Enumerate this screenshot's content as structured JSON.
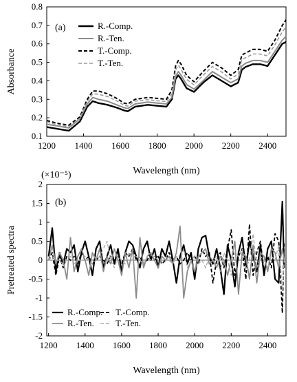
{
  "chart_data": [
    {
      "type": "line",
      "panel_label": "(a)",
      "xlabel": "Wavelength  (nm)",
      "ylabel": "Absorbance",
      "xlim": [
        1200,
        2500
      ],
      "ylim": [
        0.1,
        0.8
      ],
      "xticks": [
        1200,
        1400,
        1600,
        1800,
        2000,
        2200,
        2400
      ],
      "yticks": [
        "0.1",
        "0.2",
        "0.3",
        "0.4",
        "0.5",
        "0.6",
        "0.7",
        "0.8"
      ],
      "legend_position": "top-left",
      "legend": [
        {
          "name": "R.-Comp.",
          "color": "#000000",
          "dash": "solid",
          "width": 2.4
        },
        {
          "name": "R.-Ten.",
          "color": "#8c8c8c",
          "dash": "solid",
          "width": 2
        },
        {
          "name": "T.-Comp.",
          "color": "#000000",
          "dash": "dashed",
          "width": 2
        },
        {
          "name": "T.-Ten.",
          "color": "#9a9a9a",
          "dash": "dashed",
          "width": 1.6
        }
      ],
      "x": [
        1200,
        1260,
        1320,
        1380,
        1420,
        1450,
        1480,
        1530,
        1580,
        1620,
        1640,
        1680,
        1750,
        1800,
        1850,
        1880,
        1900,
        1915,
        1930,
        1960,
        2000,
        2050,
        2100,
        2150,
        2200,
        2240,
        2260,
        2280,
        2320,
        2360,
        2400,
        2440,
        2480,
        2500
      ],
      "series": [
        {
          "name": "R.-Comp.",
          "values": [
            0.15,
            0.14,
            0.13,
            0.18,
            0.26,
            0.29,
            0.28,
            0.27,
            0.255,
            0.24,
            0.235,
            0.26,
            0.27,
            0.265,
            0.26,
            0.3,
            0.41,
            0.43,
            0.41,
            0.36,
            0.34,
            0.39,
            0.43,
            0.4,
            0.37,
            0.39,
            0.46,
            0.475,
            0.49,
            0.49,
            0.48,
            0.54,
            0.6,
            0.61
          ]
        },
        {
          "name": "R.-Ten.",
          "values": [
            0.165,
            0.155,
            0.145,
            0.195,
            0.275,
            0.31,
            0.3,
            0.29,
            0.27,
            0.255,
            0.25,
            0.275,
            0.285,
            0.28,
            0.275,
            0.31,
            0.425,
            0.45,
            0.43,
            0.38,
            0.355,
            0.4,
            0.45,
            0.42,
            0.39,
            0.41,
            0.48,
            0.495,
            0.51,
            0.51,
            0.5,
            0.56,
            0.62,
            0.64
          ]
        },
        {
          "name": "T.-Comp.",
          "values": [
            0.185,
            0.17,
            0.16,
            0.205,
            0.3,
            0.345,
            0.345,
            0.33,
            0.305,
            0.28,
            0.275,
            0.3,
            0.31,
            0.305,
            0.3,
            0.35,
            0.48,
            0.51,
            0.49,
            0.43,
            0.395,
            0.45,
            0.5,
            0.47,
            0.43,
            0.46,
            0.54,
            0.55,
            0.57,
            0.57,
            0.56,
            0.62,
            0.7,
            0.73
          ]
        },
        {
          "name": "T.-Ten.",
          "values": [
            0.175,
            0.163,
            0.152,
            0.198,
            0.288,
            0.33,
            0.328,
            0.315,
            0.292,
            0.268,
            0.263,
            0.29,
            0.298,
            0.292,
            0.288,
            0.33,
            0.458,
            0.485,
            0.462,
            0.408,
            0.378,
            0.43,
            0.478,
            0.448,
            0.41,
            0.436,
            0.515,
            0.525,
            0.545,
            0.545,
            0.535,
            0.595,
            0.665,
            0.69
          ]
        }
      ]
    },
    {
      "type": "line",
      "panel_label": "(b)",
      "scale_label": "(×10⁻⁵)",
      "xlabel": "Wavelength  (nm)",
      "ylabel": "Pretreated spectra",
      "xlim": [
        1190,
        2500
      ],
      "ylim": [
        -2,
        2
      ],
      "xticks": [
        1200,
        1400,
        1600,
        1800,
        2000,
        2200,
        2400
      ],
      "yticks": [
        "-2",
        "-1.5",
        "-1",
        "-0.5",
        "0",
        "0.5",
        "1",
        "1.5",
        "2"
      ],
      "legend_position": "bottom-left",
      "legend": [
        {
          "name": "R.-Comp.",
          "color": "#000000",
          "dash": "solid",
          "width": 2.2
        },
        {
          "name": "T.-Comp.",
          "color": "#000000",
          "dash": "dashed",
          "width": 1.8
        },
        {
          "name": "R.-Ten.",
          "color": "#8c8c8c",
          "dash": "solid",
          "width": 1.8
        },
        {
          "name": "T.-Ten.",
          "color": "#aaaaaa",
          "dash": "dashed",
          "width": 1.4
        }
      ],
      "x": [
        1200,
        1220,
        1240,
        1260,
        1280,
        1300,
        1320,
        1340,
        1360,
        1380,
        1400,
        1420,
        1440,
        1460,
        1480,
        1500,
        1520,
        1540,
        1560,
        1580,
        1600,
        1620,
        1640,
        1660,
        1680,
        1700,
        1720,
        1740,
        1760,
        1780,
        1800,
        1820,
        1840,
        1860,
        1880,
        1900,
        1920,
        1940,
        1960,
        1980,
        2000,
        2020,
        2040,
        2060,
        2080,
        2100,
        2120,
        2140,
        2160,
        2180,
        2200,
        2220,
        2240,
        2260,
        2280,
        2300,
        2320,
        2340,
        2360,
        2380,
        2400,
        2420,
        2440,
        2460,
        2480,
        2490
      ],
      "series": [
        {
          "name": "R.-Comp.",
          "values": [
            0.1,
            0.85,
            -0.3,
            0.2,
            -0.1,
            0.3,
            0.2,
            0.4,
            -0.3,
            0.2,
            0.5,
            0.1,
            -0.4,
            0.3,
            0.5,
            -0.2,
            0.1,
            0.4,
            -0.1,
            0.3,
            -0.3,
            0.2,
            0.5,
            0.4,
            0.1,
            -0.2,
            0.3,
            0.5,
            0.0,
            0.3,
            -0.2,
            0.3,
            0.1,
            0.5,
            0.0,
            -0.6,
            0.1,
            0.4,
            -0.1,
            0.2,
            -0.5,
            0.3,
            0.6,
            0.65,
            0.1,
            -0.1,
            0.3,
            -0.2,
            -0.9,
            0.4,
            0.0,
            -0.7,
            0.2,
            0.6,
            -0.2,
            0.5,
            0.1,
            -0.3,
            0.4,
            -0.4,
            0.3,
            0.5,
            -0.5,
            -0.6,
            1.55,
            -0.2
          ]
        },
        {
          "name": "T.-Comp.",
          "values": [
            0.0,
            0.2,
            -0.4,
            0.1,
            -0.2,
            0.1,
            0.0,
            0.1,
            -0.1,
            0.2,
            0.0,
            0.1,
            -0.1,
            0.0,
            0.1,
            0.0,
            -0.1,
            0.1,
            0.0,
            0.1,
            -0.1,
            0.2,
            0.1,
            0.3,
            0.0,
            0.1,
            -0.1,
            0.0,
            0.2,
            0.0,
            0.1,
            -0.1,
            0.0,
            0.2,
            0.0,
            0.1,
            -0.1,
            0.0,
            0.2,
            0.0,
            0.1,
            -0.1,
            0.3,
            0.1,
            0.2,
            -0.6,
            0.0,
            0.2,
            -0.2,
            0.3,
            0.8,
            -0.4,
            0.1,
            0.3,
            -0.5,
            0.95,
            -0.4,
            0.2,
            0.5,
            -0.3,
            0.1,
            -0.2,
            0.7,
            0.5,
            -1.4,
            0.5
          ]
        },
        {
          "name": "R.-Ten.",
          "values": [
            0.0,
            0.4,
            -0.1,
            0.2,
            0.0,
            -0.5,
            0.6,
            -0.3,
            0.1,
            0.3,
            0.0,
            -0.4,
            0.2,
            0.0,
            0.3,
            -0.3,
            0.1,
            -0.1,
            0.3,
            0.0,
            -0.4,
            0.2,
            -0.2,
            0.3,
            -1.0,
            0.6,
            -0.2,
            0.1,
            0.2,
            0.0,
            -0.2,
            0.1,
            0.0,
            0.1,
            -0.1,
            0.2,
            0.9,
            -1.0,
            -0.3,
            0.0,
            -0.3,
            0.1,
            0.2,
            0.3,
            -0.1,
            0.0,
            -0.2,
            0.1,
            0.0,
            -0.4,
            0.0,
            0.5,
            -0.9,
            0.2,
            0.1,
            -0.5,
            0.4,
            -0.6,
            0.2,
            0.1,
            -0.3,
            0.3,
            0.2,
            -0.2,
            0.3,
            0.0
          ]
        },
        {
          "name": "T.-Ten.",
          "values": [
            0.0,
            0.1,
            0.0,
            0.0,
            -0.1,
            0.0,
            0.1,
            -0.1,
            0.0,
            0.0,
            0.1,
            0.0,
            -0.1,
            0.0,
            0.1,
            0.3,
            0.5,
            0.0,
            -0.2,
            0.1,
            0.0,
            -0.1,
            0.2,
            0.0,
            0.1,
            0.0,
            -0.1,
            0.1,
            0.0,
            0.1,
            0.0,
            -0.1,
            0.1,
            0.0,
            -0.1,
            0.1,
            0.0,
            0.3,
            -0.2,
            0.0,
            0.1,
            -0.1,
            0.0,
            -0.2,
            0.1,
            0.0,
            0.1,
            -0.3,
            0.2,
            0.0,
            -0.4,
            0.2,
            0.1,
            0.3,
            -0.2,
            0.0,
            0.7,
            -0.2,
            0.1,
            0.0,
            -0.2,
            0.1,
            0.0,
            0.4,
            -0.8,
            0.0
          ]
        }
      ]
    }
  ]
}
